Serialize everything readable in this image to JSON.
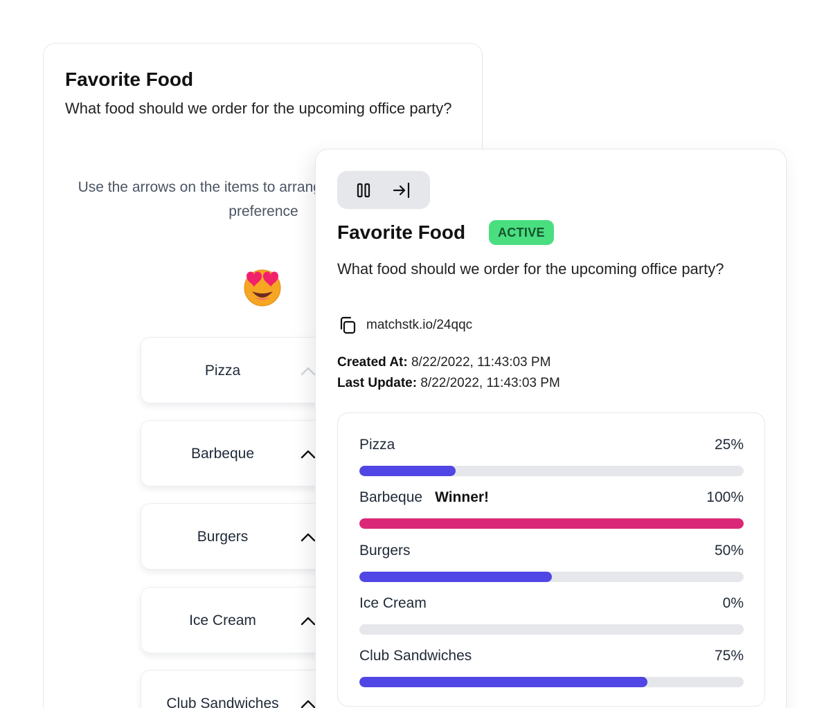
{
  "voter_card": {
    "title": "Favorite Food",
    "question": "What food should we order for the upcoming office party?",
    "instructions": "Use the arrows on the items to arrange them according to preference",
    "emoji": "heart-eyes-emoji",
    "items": [
      {
        "label": "Pizza"
      },
      {
        "label": "Barbeque"
      },
      {
        "label": "Burgers"
      },
      {
        "label": "Ice Cream"
      },
      {
        "label": "Club Sandwiches"
      }
    ]
  },
  "results_card": {
    "toolbar": {
      "pause_icon": "pause-icon",
      "exit_icon": "exit-icon"
    },
    "title": "Favorite Food",
    "status": "ACTIVE",
    "question": "What food should we order for the upcoming office party?",
    "link": "matchstk.io/24qqc",
    "created_label": "Created At:",
    "created_value": "8/22/2022, 11:43:03 PM",
    "updated_label": "Last Update:",
    "updated_value": "8/22/2022, 11:43:03 PM",
    "winner_label": "Winner!",
    "results": [
      {
        "name": "Pizza",
        "percent_label": "25%",
        "percent": 25,
        "winner": false
      },
      {
        "name": "Barbeque",
        "percent_label": "100%",
        "percent": 100,
        "winner": true
      },
      {
        "name": "Burgers",
        "percent_label": "50%",
        "percent": 50,
        "winner": false
      },
      {
        "name": "Ice Cream",
        "percent_label": "0%",
        "percent": 0,
        "winner": false
      },
      {
        "name": "Club Sandwiches",
        "percent_label": "75%",
        "percent": 75,
        "winner": false
      }
    ]
  },
  "colors": {
    "bar_fill": "#4f46e5",
    "winner_fill": "#db2777",
    "track": "#e5e7eb",
    "active_badge": "#4ade80"
  }
}
